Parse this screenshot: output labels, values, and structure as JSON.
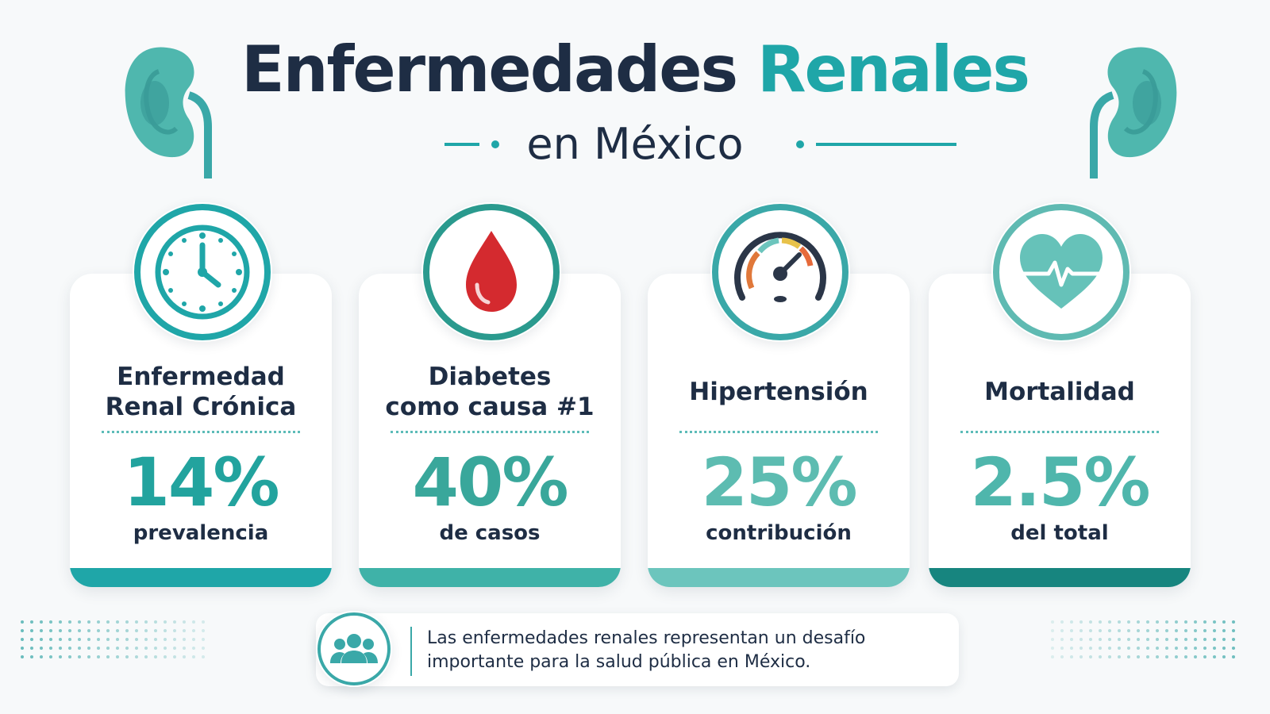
{
  "header": {
    "title_part1": "Enfermedades ",
    "title_part2": "Renales",
    "subtitle": "en México"
  },
  "colors": {
    "navy": "#1e2d44",
    "teal": "#1fa6a8",
    "teal_light": "#6cc5bd",
    "teal_dark": "#17857f",
    "red": "#d42a2f"
  },
  "cards": [
    {
      "label": "Enfermedad\nRenal Crónica",
      "value": "14%",
      "sub": "prevalencia",
      "icon": "clock-icon",
      "bar_color": "#1fa6a8",
      "value_color": "#22a39e"
    },
    {
      "label": "Diabetes\ncomo causa #1",
      "value": "40%",
      "sub": "de casos",
      "icon": "blood-drop-icon",
      "bar_color": "#3fb2a8",
      "value_color": "#39a79b"
    },
    {
      "label": "Hipertensión",
      "value": "25%",
      "sub": "contribución",
      "icon": "gauge-icon",
      "bar_color": "#6cc5bd",
      "value_color": "#5dbcb1"
    },
    {
      "label": "Mortalidad",
      "value": "2.5%",
      "sub": "del total",
      "icon": "heart-pulse-icon",
      "bar_color": "#17857f",
      "value_color": "#4fb6ac"
    }
  ],
  "note": {
    "icon": "people-group-icon",
    "text": "Las enfermedades renales representan un desafío importante para la salud pública en México."
  }
}
